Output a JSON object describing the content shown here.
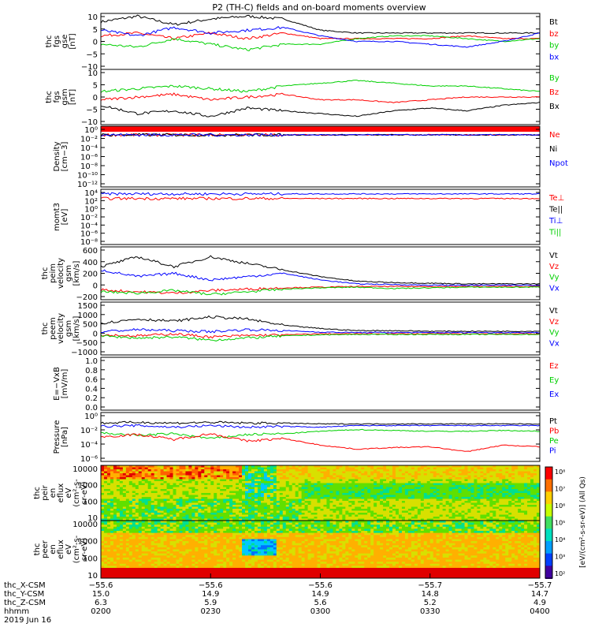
{
  "title": "P2 (TH-C) fields and on-board moments overview",
  "colors": {
    "black": "#000000",
    "red": "#ff0000",
    "green": "#00d000",
    "blue": "#0000ff",
    "bg": "#ffffff"
  },
  "chart_data": [
    {
      "type": "line",
      "id": "fgs_gse",
      "ylabel": [
        "thc",
        "fgs",
        "gse",
        "[nT]"
      ],
      "ylim": [
        -10,
        10
      ],
      "yticks": [
        "10",
        "5",
        "0",
        "−5",
        "−10"
      ],
      "legend": [
        {
          "name": "Bt",
          "color": "black"
        },
        {
          "name": "bz",
          "color": "red"
        },
        {
          "name": "by",
          "color": "green"
        },
        {
          "name": "bx",
          "color": "blue"
        }
      ],
      "x": [
        0,
        10,
        20,
        30,
        40,
        50,
        60,
        70,
        80,
        90,
        100,
        110,
        120
      ],
      "series": [
        {
          "name": "Bt",
          "values": [
            7,
            9,
            6,
            8,
            9,
            8,
            4,
            3,
            3,
            3,
            3,
            3,
            3
          ]
        },
        {
          "name": "bz",
          "values": [
            2,
            3,
            1,
            3,
            1,
            3,
            1,
            1,
            1,
            1,
            2,
            1,
            1
          ]
        },
        {
          "name": "by",
          "values": [
            -1,
            -2,
            1,
            -1,
            -3,
            -1,
            -1,
            1,
            2,
            2,
            1,
            0,
            1
          ]
        },
        {
          "name": "bx",
          "values": [
            4,
            2,
            5,
            3,
            4,
            5,
            2,
            0,
            0,
            -1,
            -2,
            0,
            3
          ]
        }
      ]
    },
    {
      "type": "line",
      "id": "fgs_gsm",
      "ylabel": [
        "thc",
        "fgs",
        "gsm",
        "[nT]"
      ],
      "ylim": [
        -10,
        10
      ],
      "yticks": [
        "10",
        "5",
        "0",
        "−5",
        "−10"
      ],
      "legend": [
        {
          "name": "By",
          "color": "green"
        },
        {
          "name": "Bz",
          "color": "red"
        },
        {
          "name": "Bx",
          "color": "black"
        }
      ],
      "x": [
        0,
        10,
        20,
        30,
        40,
        50,
        60,
        70,
        80,
        90,
        100,
        110,
        120
      ],
      "series": [
        {
          "name": "By",
          "values": [
            2,
            3,
            4,
            3,
            2,
            4,
            5,
            6,
            5,
            4,
            4,
            3,
            2
          ]
        },
        {
          "name": "Bz",
          "values": [
            -1,
            0,
            1,
            -1,
            0,
            1,
            -1,
            -1,
            -2,
            -1,
            0,
            0,
            0
          ]
        },
        {
          "name": "Bx",
          "values": [
            -3,
            -6,
            -5,
            -7,
            -4,
            -5,
            -6,
            -7,
            -5,
            -4,
            -5,
            -3,
            -2
          ]
        }
      ]
    },
    {
      "type": "line",
      "id": "density",
      "ylabel": [
        "Density",
        "[cm−3]"
      ],
      "yscale": "log",
      "ylim": [
        -12,
        2
      ],
      "yticks": [
        "10⁰",
        "10⁻²",
        "10⁻⁴",
        "10⁻⁶",
        "10⁻⁸",
        "10⁻¹⁰",
        "10⁻¹²"
      ],
      "legend": [
        {
          "name": "Ne",
          "color": "red"
        },
        {
          "name": "Ni",
          "color": "black"
        },
        {
          "name": "Npot",
          "color": "blue"
        }
      ],
      "x": [
        0,
        120
      ],
      "series": [
        {
          "name": "Ne",
          "values": [
            0,
            0
          ]
        },
        {
          "name": "Ni",
          "values": [
            0,
            0
          ]
        },
        {
          "name": "Npot",
          "values": [
            0,
            0
          ]
        }
      ]
    },
    {
      "type": "line",
      "id": "moms",
      "ylabel": [
        "momt3",
        "[eV]"
      ],
      "yscale": "log",
      "ylim": [
        -8,
        4
      ],
      "yticks": [
        "10⁴",
        "10²",
        "10⁰",
        "10⁻²",
        "10⁻⁴",
        "10⁻⁶",
        "10⁻⁸"
      ],
      "legend": [
        {
          "name": "Te⊥",
          "color": "red"
        },
        {
          "name": "Te||",
          "color": "black"
        },
        {
          "name": "Ti⊥",
          "color": "blue"
        },
        {
          "name": "Ti||",
          "color": "green"
        }
      ],
      "x": [
        0,
        120
      ],
      "series": [
        {
          "name": "Ti⊥",
          "values": [
            3,
            3
          ]
        },
        {
          "name": "Te⊥",
          "values": [
            2,
            2
          ]
        }
      ]
    },
    {
      "type": "line",
      "id": "peim_vel",
      "ylabel": [
        "thc",
        "peim",
        "velocity",
        "gsm",
        "[km/s]"
      ],
      "ylim": [
        -200,
        600
      ],
      "yticks": [
        "600",
        "400",
        "200",
        "0",
        "−200"
      ],
      "legend": [
        {
          "name": "Vt",
          "color": "black"
        },
        {
          "name": "Vz",
          "color": "red"
        },
        {
          "name": "Vy",
          "color": "green"
        },
        {
          "name": "Vx",
          "color": "blue"
        }
      ],
      "x": [
        0,
        10,
        20,
        30,
        40,
        50,
        60,
        70,
        80,
        90,
        100,
        110,
        120
      ],
      "series": [
        {
          "name": "Vt",
          "values": [
            300,
            450,
            300,
            450,
            350,
            250,
            150,
            80,
            60,
            50,
            40,
            40,
            40
          ]
        },
        {
          "name": "Vz",
          "values": [
            -50,
            -80,
            -100,
            -60,
            -40,
            -20,
            -10,
            0,
            0,
            0,
            0,
            0,
            0
          ]
        },
        {
          "name": "Vy",
          "values": [
            -80,
            -100,
            -60,
            -120,
            -80,
            -40,
            -20,
            -10,
            -30,
            -20,
            -10,
            -10,
            -10
          ]
        },
        {
          "name": "Vx",
          "values": [
            250,
            150,
            200,
            100,
            150,
            200,
            100,
            40,
            30,
            20,
            20,
            20,
            20
          ]
        }
      ]
    },
    {
      "type": "line",
      "id": "peem_vel",
      "ylabel": [
        "thc",
        "peem",
        "velocity",
        "gsm",
        "[km/s]"
      ],
      "ylim": [
        -1000,
        1500
      ],
      "yticks": [
        "1500",
        "1000",
        "500",
        "0",
        "−500",
        "−1000"
      ],
      "legend": [
        {
          "name": "Vt",
          "color": "black"
        },
        {
          "name": "Vz",
          "color": "red"
        },
        {
          "name": "Vy",
          "color": "green"
        },
        {
          "name": "Vx",
          "color": "blue"
        }
      ],
      "x": [
        0,
        10,
        20,
        30,
        40,
        50,
        60,
        70,
        80,
        90,
        100,
        110,
        120
      ],
      "series": [
        {
          "name": "Vt",
          "values": [
            500,
            700,
            600,
            800,
            700,
            400,
            250,
            150,
            150,
            120,
            120,
            120,
            120
          ]
        },
        {
          "name": "Vz",
          "values": [
            -50,
            -100,
            0,
            -150,
            -80,
            -50,
            0,
            0,
            0,
            0,
            0,
            0,
            0
          ]
        },
        {
          "name": "Vy",
          "values": [
            -100,
            -200,
            -150,
            -300,
            -200,
            -100,
            -50,
            -30,
            -30,
            -30,
            -30,
            -30,
            -30
          ]
        },
        {
          "name": "Vx",
          "values": [
            100,
            200,
            150,
            100,
            200,
            150,
            80,
            60,
            60,
            60,
            60,
            60,
            60
          ]
        }
      ]
    },
    {
      "type": "line",
      "id": "efield",
      "ylabel": [
        "E=−VxB",
        "[mV/m]"
      ],
      "ylim": [
        0,
        1
      ],
      "yticks": [
        "1.0",
        "0.8",
        "0.6",
        "0.4",
        "0.2",
        "0.0"
      ],
      "legend": [
        {
          "name": "Ez",
          "color": "red"
        },
        {
          "name": "Ey",
          "color": "green"
        },
        {
          "name": "Ex",
          "color": "blue"
        }
      ],
      "x": [
        0,
        120
      ],
      "series": []
    },
    {
      "type": "line",
      "id": "pressure",
      "ylabel": [
        "Pressure",
        "[nPa]"
      ],
      "yscale": "log",
      "ylim": [
        -6,
        0
      ],
      "yticks": [
        "10⁰",
        "10⁻²",
        "10⁻⁴",
        "10⁻⁶"
      ],
      "legend": [
        {
          "name": "Pt",
          "color": "black"
        },
        {
          "name": "Pb",
          "color": "red"
        },
        {
          "name": "Pe",
          "color": "green"
        },
        {
          "name": "Pi",
          "color": "blue"
        }
      ],
      "x": [
        0,
        10,
        20,
        30,
        40,
        50,
        60,
        70,
        80,
        90,
        100,
        110,
        120
      ],
      "series": [
        {
          "name": "Pt",
          "values": [
            -1.3,
            -1.2,
            -1.3,
            -1.2,
            -1.3,
            -1.3,
            -1.4,
            -1.4,
            -1.4,
            -1.4,
            -1.4,
            -1.4,
            -1.4
          ]
        },
        {
          "name": "Pi",
          "values": [
            -1.7,
            -1.6,
            -1.8,
            -1.6,
            -1.8,
            -1.7,
            -1.8,
            -1.6,
            -1.6,
            -1.6,
            -1.6,
            -1.6,
            -1.6
          ]
        },
        {
          "name": "Pe",
          "values": [
            -2.5,
            -2.8,
            -2.6,
            -3.2,
            -2.7,
            -2.6,
            -2.3,
            -2.1,
            -2.2,
            -2.3,
            -2.3,
            -2.2,
            -2.3
          ]
        },
        {
          "name": "Pb",
          "values": [
            -3.0,
            -2.7,
            -3.3,
            -2.6,
            -3.5,
            -3.2,
            -4.0,
            -4.5,
            -4.3,
            -4.2,
            -4.8,
            -4.0,
            -4.2
          ]
        }
      ]
    },
    {
      "type": "heatmap",
      "id": "peir",
      "ylabel": [
        "thc",
        "peir",
        "en",
        "eflux",
        "eV",
        "(cm²-s-",
        "sr-eV)"
      ],
      "yscale": "log",
      "ylim": [
        5,
        20000
      ],
      "yticks": [
        "10000",
        "1000",
        "100",
        "10"
      ]
    },
    {
      "type": "heatmap",
      "id": "peer",
      "ylabel": [
        "thc",
        "peer",
        "en",
        "eflux",
        "eV",
        "(cm²-s-",
        "sr-eV)"
      ],
      "yscale": "log",
      "ylim": [
        5,
        20000
      ],
      "yticks": [
        "10000",
        "1000",
        "100",
        "10"
      ]
    }
  ],
  "colorbar": {
    "label": "[eV/(cm²-s-sr-eV)] (All Qs)",
    "ticks": [
      "10⁸",
      "10⁷",
      "10⁶",
      "10⁵",
      "10⁴",
      "10³",
      "10²"
    ]
  },
  "xaxis": {
    "row_labels": [
      "thc_X-CSM",
      "thc_Y-CSM",
      "thc_Z-CSM",
      "hhmm",
      "2019 Jun 16"
    ],
    "columns": [
      [
        "−55.6",
        "15.0",
        "6.3",
        "0200"
      ],
      [
        "−55.6",
        "14.9",
        "5.9",
        "0230"
      ],
      [
        "−55.6",
        "14.9",
        "5.6",
        "0300"
      ],
      [
        "−55.7",
        "14.8",
        "5.2",
        "0330"
      ],
      [
        "−55.7",
        "14.7",
        "4.9",
        "0400"
      ]
    ]
  }
}
